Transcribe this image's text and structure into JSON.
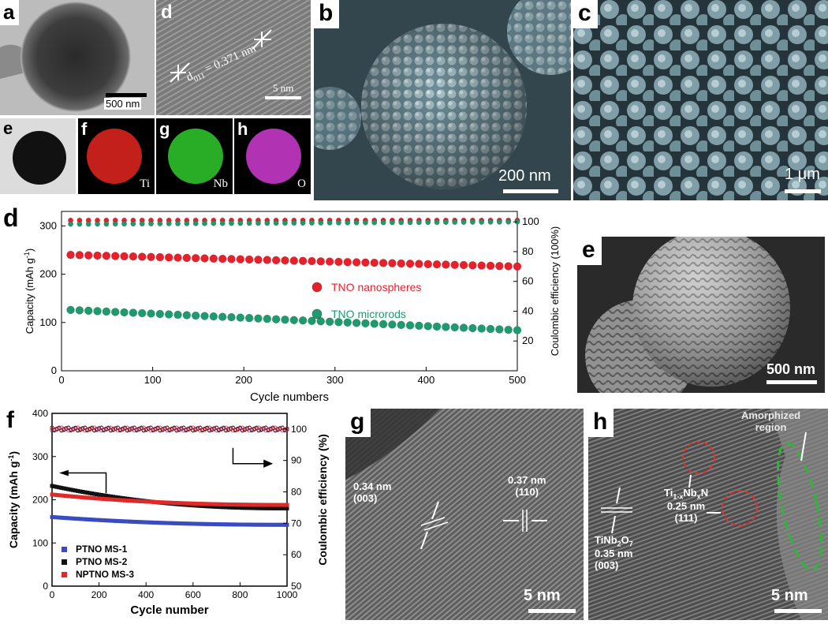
{
  "figure": {
    "panel_a": {
      "tag": "a",
      "scalebar": "500 nm"
    },
    "panel_d_top": {
      "tag": "d",
      "annotation": "d",
      "annotation_sub": "011",
      "annotation_value": "= 0.371 nm",
      "scalebar": "5 nm"
    },
    "panel_e_top": {
      "tag": "e"
    },
    "panel_f_top": {
      "tag": "f",
      "element": "Ti",
      "color": "#d8241e"
    },
    "panel_g_top": {
      "tag": "g",
      "element": "Nb",
      "color": "#2fc02a"
    },
    "panel_h_top": {
      "tag": "h",
      "element": "O",
      "color": "#c437c6"
    },
    "panel_b": {
      "tag": "b",
      "scalebar": "200 nm"
    },
    "panel_c": {
      "tag": "c",
      "scalebar": "1 μm"
    },
    "panel_e_right": {
      "tag": "e",
      "scalebar": "500 nm"
    },
    "panel_g_bottom": {
      "tag": "g",
      "label1": "0.34 nm",
      "label2": "(003)",
      "label3": "0.37 nm",
      "label4": "(110)",
      "scalebar": "5 nm"
    },
    "panel_h_bottom": {
      "tag": "h",
      "region": "Amorphized",
      "region2": "region",
      "phase1": "Ti",
      "phase1_sub": "1-x",
      "phase1_mid": "Nb",
      "phase1_sub2": "x",
      "phase1_end": "N",
      "phase1_d": "0.25 nm",
      "phase1_hkl": "(111)",
      "phase2": "TiNb",
      "phase2_sub": "2",
      "phase2_mid": "O",
      "phase2_sub2": "7",
      "phase2_d": "0.35 nm",
      "phase2_hkl": "(003)",
      "scalebar": "5 nm"
    }
  },
  "chart_data": [
    {
      "panel": "d",
      "type": "scatter",
      "xlabel": "Cycle numbers",
      "ylabel": "Capacity (mAh g",
      "ylabel_sup": "-1",
      "ylabel_end": ")",
      "y2label": "Coulombic efficiency (100%)",
      "xlim": [
        0,
        500
      ],
      "ylim": [
        0,
        330
      ],
      "y2lim": [
        0,
        107
      ],
      "x_ticks": [
        "0",
        "100",
        "200",
        "300",
        "400",
        "500"
      ],
      "y_ticks": [
        "0",
        "100",
        "200",
        "300"
      ],
      "y2_ticks": [
        "20",
        "40",
        "60",
        "80",
        "100"
      ],
      "legend_placement": "center-right",
      "series": [
        {
          "name": "TNO nanospheres",
          "axis": "left",
          "color": "#e8202a",
          "x_start": 10,
          "x_end": 500,
          "y_start": 240,
          "y_end": 216
        },
        {
          "name": "TNO microrods",
          "axis": "left",
          "color": "#1f9a6e",
          "x_start": 10,
          "x_end": 500,
          "y_start": 126,
          "y_end": 84
        },
        {
          "axis": "right",
          "color": "#e8202a",
          "x_start": 10,
          "x_end": 500,
          "y_start": 101,
          "y_end": 101
        },
        {
          "axis": "right",
          "color": "#1f9a6e",
          "x_start": 10,
          "x_end": 500,
          "y_start": 98.5,
          "y_end": 100
        }
      ]
    },
    {
      "panel": "f",
      "type": "scatter",
      "xlabel": "Cycle number",
      "ylabel": "Capacity (mAh g",
      "ylabel_sup": "-1",
      "ylabel_end": ")",
      "y2label": "Coulombic efficiency (%)",
      "xlim": [
        0,
        1000
      ],
      "ylim": [
        0,
        400
      ],
      "y2lim": [
        50,
        105
      ],
      "x_ticks": [
        "0",
        "200",
        "400",
        "600",
        "800",
        "1000"
      ],
      "y_ticks": [
        "0",
        "100",
        "200",
        "300",
        "400"
      ],
      "y2_ticks": [
        "50",
        "60",
        "70",
        "80",
        "90",
        "100"
      ],
      "legend_placement": "bottom-left",
      "series": [
        {
          "name": "PTNO MS-1",
          "color": "#3a4bc0",
          "y_start": 160,
          "y_end": 142
        },
        {
          "name": "PTNO MS-2",
          "color": "#111111",
          "y_start": 232,
          "y_end": 180
        },
        {
          "name": "NPTNO MS-3",
          "color": "#e02a2a",
          "y_start": 212,
          "y_end": 188
        }
      ]
    }
  ]
}
